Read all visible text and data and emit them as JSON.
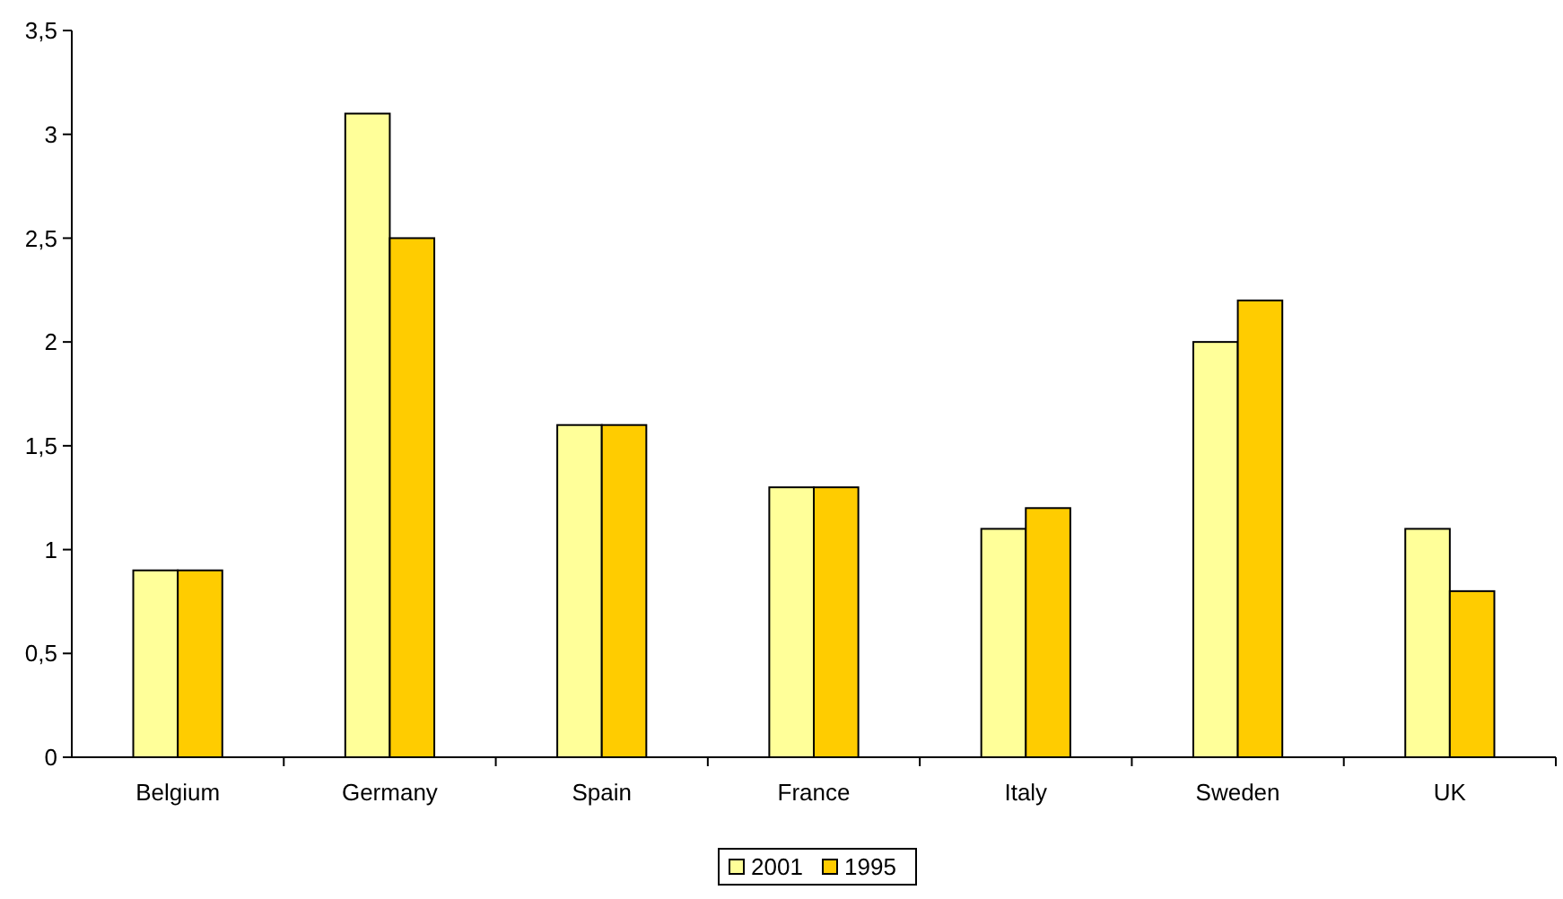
{
  "chart_data": {
    "type": "bar",
    "categories": [
      "Belgium",
      "Germany",
      "Spain",
      "France",
      "Italy",
      "Sweden",
      "UK"
    ],
    "series": [
      {
        "name": "2001",
        "color": "#ffff99",
        "values": [
          0.9,
          3.1,
          1.6,
          1.3,
          1.1,
          2.0,
          1.1
        ]
      },
      {
        "name": "1995",
        "color": "#ffcc00",
        "values": [
          0.9,
          2.5,
          1.6,
          1.3,
          1.2,
          2.2,
          0.8
        ]
      }
    ],
    "ylim": [
      0,
      3.5
    ],
    "yticks": [
      0,
      {
        "value": 0.5,
        "label": "0,5"
      },
      1,
      {
        "value": 1.5,
        "label": "1,5"
      },
      2,
      {
        "value": 2.5,
        "label": "2,5"
      },
      3,
      {
        "value": 3.5,
        "label": "3,5"
      }
    ],
    "grid": false,
    "legend": "bottom"
  }
}
